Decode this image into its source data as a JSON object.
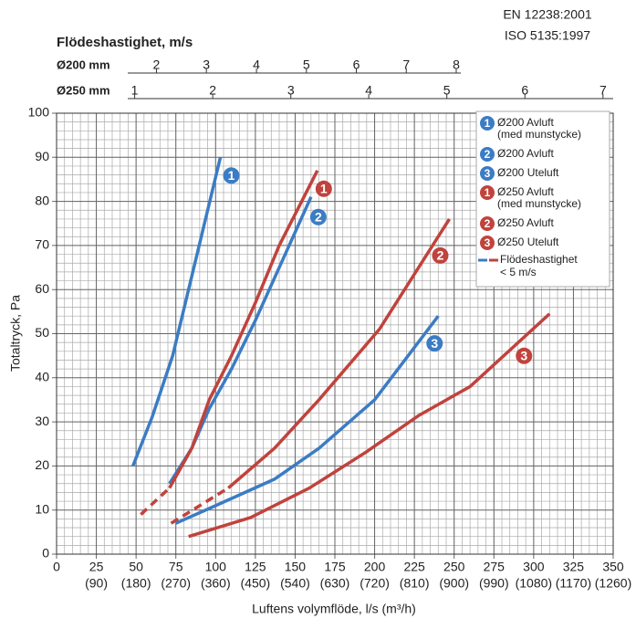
{
  "chart_data": {
    "type": "line",
    "standards": [
      "EN 12238:2001",
      "ISO 5135:1997"
    ],
    "top_title": "Flödeshastighet, m/s",
    "top_axes": [
      {
        "label": "Ø200 mm",
        "ticks": [
          {
            "value": 62.8,
            "label": "2"
          },
          {
            "value": 94.2,
            "label": "3"
          },
          {
            "value": 125.7,
            "label": "4"
          },
          {
            "value": 157.1,
            "label": "5"
          },
          {
            "value": 188.5,
            "label": "6"
          },
          {
            "value": 219.9,
            "label": "7"
          },
          {
            "value": 251.3,
            "label": "8"
          }
        ]
      },
      {
        "label": "Ø250 mm",
        "ticks": [
          {
            "value": 49.1,
            "label": "1"
          },
          {
            "value": 98.2,
            "label": "2"
          },
          {
            "value": 147.3,
            "label": "3"
          },
          {
            "value": 196.3,
            "label": "4"
          },
          {
            "value": 245.4,
            "label": "5"
          },
          {
            "value": 294.5,
            "label": "6"
          },
          {
            "value": 343.6,
            "label": "7"
          }
        ]
      }
    ],
    "x_label": "Luftens volymflöde, l/s (m³/h)",
    "y_label": "Totaltryck, Pa",
    "xlim": [
      0,
      350
    ],
    "ylim": [
      0,
      100
    ],
    "xticks": [
      0,
      25,
      50,
      75,
      100,
      125,
      150,
      175,
      200,
      225,
      250,
      275,
      300,
      325,
      350
    ],
    "xticks_m3h": [
      {
        "value": 25,
        "label": "(90)"
      },
      {
        "value": 50,
        "label": "(180)"
      },
      {
        "value": 75,
        "label": "(270)"
      },
      {
        "value": 100,
        "label": "(360)"
      },
      {
        "value": 125,
        "label": "(450)"
      },
      {
        "value": 150,
        "label": "(540)"
      },
      {
        "value": 175,
        "label": "(630)"
      },
      {
        "value": 200,
        "label": "(720)"
      },
      {
        "value": 225,
        "label": "(810)"
      },
      {
        "value": 250,
        "label": "(900)"
      },
      {
        "value": 275,
        "label": "(990)"
      },
      {
        "value": 300,
        "label": "(1080)"
      },
      {
        "value": 325,
        "label": "(1170)"
      },
      {
        "value": 350,
        "label": "(1260)"
      }
    ],
    "yticks": [
      0,
      10,
      20,
      30,
      40,
      50,
      60,
      70,
      80,
      90,
      100
    ],
    "x_minor_step": 5,
    "y_minor_step": 2,
    "grid": true,
    "series": [
      {
        "number": "1",
        "name": "Ø200 Avluft",
        "note": "(med munstycke)",
        "color": "#3b7cc4",
        "x": [
          48,
          60,
          73,
          83,
          93,
          103
        ],
        "values": [
          20,
          31,
          45,
          60,
          75,
          90
        ]
      },
      {
        "number": "2",
        "name": "Ø200 Avluft",
        "color": "#3b7cc4",
        "x": [
          71,
          85,
          96,
          110,
          125,
          140,
          160
        ],
        "values": [
          16,
          24,
          33,
          42,
          53,
          65,
          81
        ]
      },
      {
        "number": "3",
        "name": "Ø200 Uteluft",
        "color": "#3b7cc4",
        "x": [
          75,
          100,
          137,
          165,
          200,
          240
        ],
        "values": [
          7,
          11,
          17,
          24,
          35,
          54
        ]
      },
      {
        "number": "1",
        "name": "Ø250 Avluft",
        "note": "(med munstycke)",
        "color": "#c0433c",
        "x": [
          71,
          85,
          96,
          110,
          125,
          140,
          164
        ],
        "values": [
          15,
          24,
          35,
          45,
          57,
          70,
          87
        ]
      },
      {
        "number": "2",
        "name": "Ø250 Avluft",
        "color": "#c0433c",
        "x": [
          108,
          137,
          165,
          203,
          247
        ],
        "values": [
          15,
          24,
          35,
          51,
          76
        ]
      },
      {
        "number": "3",
        "name": "Ø250 Uteluft",
        "color": "#c0433c",
        "x": [
          83,
          122,
          159,
          194,
          228,
          260,
          310
        ],
        "values": [
          4,
          8.3,
          15,
          23,
          31.5,
          38,
          54.5
        ]
      }
    ],
    "dashed_series": [
      {
        "color": "#c0433c",
        "x": [
          53,
          71
        ],
        "values": [
          9,
          15
        ]
      },
      {
        "color": "#c0433c",
        "x": [
          72,
          108
        ],
        "values": [
          7,
          15
        ]
      }
    ],
    "dashed_legend": {
      "text": [
        "Flödeshastighet",
        "< 5 m/s"
      ],
      "colors": [
        "#3b7cc4",
        "#c0433c"
      ]
    }
  }
}
